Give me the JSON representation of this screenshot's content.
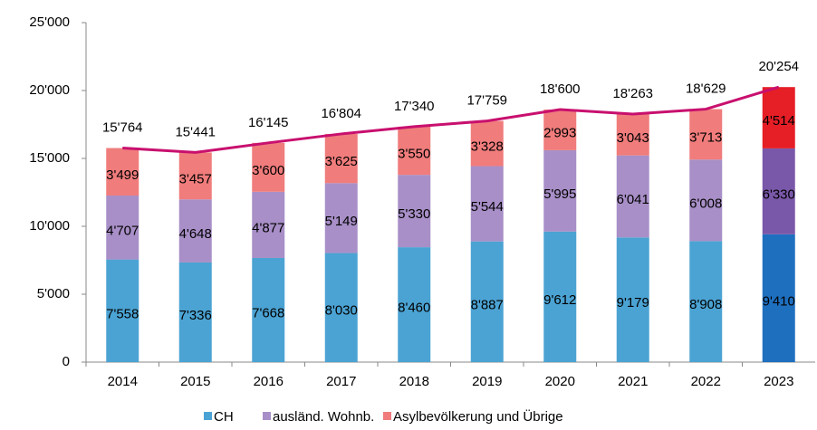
{
  "chart_data": {
    "type": "bar",
    "stacked": true,
    "categories": [
      "2014",
      "2015",
      "2016",
      "2017",
      "2018",
      "2019",
      "2020",
      "2021",
      "2022",
      "2023"
    ],
    "series": [
      {
        "name": "CH",
        "color": "#4ba3d3",
        "highlight_color": "#1f6fbf",
        "values": [
          7558,
          7336,
          7668,
          8030,
          8460,
          8887,
          9612,
          9179,
          8908,
          9410
        ],
        "value_labels": [
          "7'558",
          "7'336",
          "7'668",
          "8'030",
          "8'460",
          "8'887",
          "9'612",
          "9'179",
          "8'908",
          "9'410"
        ]
      },
      {
        "name": "ausländ. Wohnb.",
        "color": "#a88fc7",
        "highlight_color": "#7a58a9",
        "values": [
          4707,
          4648,
          4877,
          5149,
          5330,
          5544,
          5995,
          6041,
          6008,
          6330
        ],
        "value_labels": [
          "4'707",
          "4'648",
          "4'877",
          "5'149",
          "5'330",
          "5'544",
          "5'995",
          "6'041",
          "6'008",
          "6'330"
        ]
      },
      {
        "name": "Asylbevölkerung und Übrige",
        "color": "#f07c7c",
        "highlight_color": "#e61e26",
        "values": [
          3499,
          3457,
          3600,
          3625,
          3550,
          3328,
          2993,
          3043,
          3713,
          4514
        ],
        "value_labels": [
          "3'499",
          "3'457",
          "3'600",
          "3'625",
          "3'550",
          "3'328",
          "2'993",
          "3'043",
          "3'713",
          "4'514"
        ]
      }
    ],
    "totals": {
      "color": "#c8106e",
      "values": [
        15764,
        15441,
        16145,
        16804,
        17340,
        17759,
        18600,
        18263,
        18629,
        20254
      ],
      "value_labels": [
        "15'764",
        "15'441",
        "16'145",
        "16'804",
        "17'340",
        "17'759",
        "18'600",
        "18'263",
        "18'629",
        "20'254"
      ]
    },
    "ylim": [
      0,
      25000
    ],
    "yticks": [
      {
        "value": 0,
        "label": "0"
      },
      {
        "value": 5000,
        "label": "5'000"
      },
      {
        "value": 10000,
        "label": "10'000"
      },
      {
        "value": 15000,
        "label": "15'000"
      },
      {
        "value": 20000,
        "label": "20'000"
      },
      {
        "value": 25000,
        "label": "25'000"
      }
    ],
    "legend": "bottom"
  }
}
